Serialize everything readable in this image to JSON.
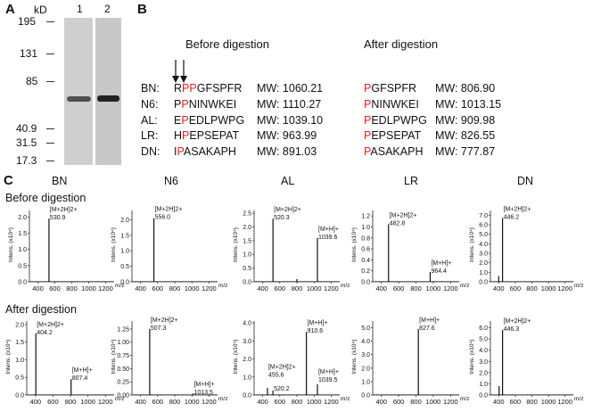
{
  "panelA": {
    "letter": "A",
    "kd_label": "kD",
    "markers": [
      "195",
      "131",
      "85",
      "40.9",
      "31.5",
      "17.3"
    ],
    "lanes": [
      "1",
      "2"
    ]
  },
  "panelB": {
    "letter": "B",
    "before_header": "Before digestion",
    "after_header": "After digestion",
    "rows": [
      {
        "name": "BN:",
        "before_pre": "R",
        "before_red": "PP",
        "before_post": "GFSPFR",
        "before_mw": "MW: 1060.21",
        "after_red": "P",
        "after_post": "GFSPFR",
        "after_mw": "MW: 806.90"
      },
      {
        "name": "N6:",
        "before_pre": "P",
        "before_red": "P",
        "before_post": "NINWKEI",
        "before_mw": "MW: 1110.27",
        "after_red": "P",
        "after_post": "NINWKEI",
        "after_mw": "MW: 1013.15"
      },
      {
        "name": "AL:",
        "before_pre": "E",
        "before_red": "P",
        "before_post": "EDLPWPG",
        "before_mw": "MW: 1039.10",
        "after_red": "P",
        "after_post": "EDLPWPG",
        "after_mw": "MW: 909.98"
      },
      {
        "name": "LR:",
        "before_pre": "H",
        "before_red": "P",
        "before_post": "EPSEPAT",
        "before_mw": "MW: 963.99",
        "after_red": "P",
        "after_post": "EPSEPAT",
        "after_mw": "MW: 826.55"
      },
      {
        "name": "DN:",
        "before_pre": "I",
        "before_red": "P",
        "before_post": "ASAKAPH",
        "before_mw": "MW: 891.03",
        "after_red": "P",
        "after_post": "ASAKAPH",
        "after_mw": "MW: 777.87"
      }
    ]
  },
  "panelC": {
    "letter": "C",
    "columns": [
      "BN",
      "N6",
      "AL",
      "LR",
      "DN"
    ],
    "row_before": "Before digestion",
    "row_after": "After digestion",
    "ylabel": "Intens. (x10⁴)",
    "xunit": "m/z"
  },
  "chart_data": [
    {
      "type": "line",
      "id": "BN-before",
      "ylabel": "Intens. (x10⁴)",
      "ylim": [
        0,
        2.2
      ],
      "yticks": [
        "0.0",
        "0.5",
        "1.0",
        "1.5",
        "2.0"
      ],
      "xticks": [
        "400",
        "600",
        "800",
        "1000",
        "1200"
      ],
      "xlim": [
        300,
        1300
      ],
      "peaks": [
        {
          "x": 530.9,
          "y": 1.95
        }
      ],
      "labels": [
        {
          "x": 530.9,
          "y": 1.95,
          "l1": "[M+2H]2+",
          "l2": "530.9"
        }
      ]
    },
    {
      "type": "line",
      "id": "N6-before",
      "ylabel": "Intens. (x10⁴)",
      "ylim": [
        0,
        2.3
      ],
      "yticks": [
        "0.0",
        "0.5",
        "1.0",
        "1.5",
        "2.0"
      ],
      "xticks": [
        "400",
        "600",
        "800",
        "1000",
        "1200"
      ],
      "xlim": [
        300,
        1300
      ],
      "peaks": [
        {
          "x": 556.0,
          "y": 2.05
        }
      ],
      "labels": [
        {
          "x": 556.0,
          "y": 2.05,
          "l1": "[M+2H]2+",
          "l2": "556.0"
        }
      ]
    },
    {
      "type": "line",
      "id": "AL-before",
      "ylabel": "Intens. (x10⁴)",
      "ylim": [
        0,
        2.6
      ],
      "yticks": [
        "0.0",
        "0.5",
        "1.0",
        "1.5",
        "2.0",
        "2.5"
      ],
      "xticks": [
        "400",
        "600",
        "800",
        "1000",
        "1200"
      ],
      "xlim": [
        300,
        1300
      ],
      "peaks": [
        {
          "x": 520.3,
          "y": 2.3
        },
        {
          "x": 800,
          "y": 0.1
        },
        {
          "x": 1039.6,
          "y": 1.6
        }
      ],
      "labels": [
        {
          "x": 520.3,
          "y": 2.3,
          "l1": "[M+2H]2+",
          "l2": "520.3"
        },
        {
          "x": 1039.6,
          "y": 1.6,
          "l1": "[M+H]+",
          "l2": "1039.6"
        }
      ]
    },
    {
      "type": "line",
      "id": "LR-before",
      "ylabel": "Intens. (x10⁴)",
      "ylim": [
        0,
        1.3
      ],
      "yticks": [
        "0.0",
        "0.2",
        "0.4",
        "0.6",
        "0.8",
        "1.0",
        "1.2"
      ],
      "xticks": [
        "400",
        "600",
        "800",
        "1000",
        "1200"
      ],
      "xlim": [
        300,
        1300
      ],
      "peaks": [
        {
          "x": 482.8,
          "y": 1.05
        },
        {
          "x": 964.4,
          "y": 0.18
        }
      ],
      "labels": [
        {
          "x": 482.8,
          "y": 1.05,
          "l1": "[M+2H]2+",
          "l2": "482.8"
        },
        {
          "x": 964.4,
          "y": 0.18,
          "l1": "[M+H]+",
          "l2": "964.4"
        }
      ]
    },
    {
      "type": "line",
      "id": "DN-before",
      "ylabel": "Intens. (x10⁴)",
      "ylim": [
        0,
        7.5
      ],
      "yticks": [
        "0.0",
        "1.0",
        "2.0",
        "3.0",
        "4.0",
        "5.0",
        "6.0",
        "7.0"
      ],
      "xticks": [
        "400",
        "600",
        "800",
        "1000",
        "1200"
      ],
      "xlim": [
        300,
        1300
      ],
      "peaks": [
        {
          "x": 446.2,
          "y": 6.7
        },
        {
          "x": 400,
          "y": 0.6
        }
      ],
      "labels": [
        {
          "x": 446.2,
          "y": 6.7,
          "l1": "[M+2H]2+",
          "l2": "446.2"
        }
      ]
    },
    {
      "type": "line",
      "id": "BN-after",
      "ylabel": "Intens. (x10⁴)",
      "ylim": [
        0,
        2.1
      ],
      "yticks": [
        "0.0",
        "0.5",
        "1.0",
        "1.5",
        "2.0"
      ],
      "xticks": [
        "400",
        "600",
        "800",
        "1000",
        "1200"
      ],
      "xlim": [
        300,
        1300
      ],
      "peaks": [
        {
          "x": 404.2,
          "y": 1.75
        },
        {
          "x": 807.4,
          "y": 0.45
        }
      ],
      "labels": [
        {
          "x": 404.2,
          "y": 1.75,
          "l1": "[M+2H]2+",
          "l2": "404.2"
        },
        {
          "x": 807.4,
          "y": 0.45,
          "l1": "[M+H]+",
          "l2": "807.4"
        }
      ]
    },
    {
      "type": "line",
      "id": "N6-after",
      "ylabel": "Intens. (x10⁴)",
      "ylim": [
        0,
        1.4
      ],
      "yticks": [
        "0.00",
        "0.25",
        "0.50",
        "0.75",
        "1.00",
        "1.25"
      ],
      "xticks": [
        "400",
        "600",
        "800",
        "1000",
        "1200"
      ],
      "xlim": [
        300,
        1300
      ],
      "peaks": [
        {
          "x": 507.3,
          "y": 1.25
        },
        {
          "x": 1013.5,
          "y": 0.03
        }
      ],
      "labels": [
        {
          "x": 507.3,
          "y": 1.25,
          "l1": "[M+2H]2+",
          "l2": "507.3"
        },
        {
          "x": 1013.5,
          "y": 0.03,
          "l1": "[M+H]+",
          "l2": "1013.5"
        }
      ]
    },
    {
      "type": "line",
      "id": "AL-after",
      "ylabel": "Intens. (x10⁴)",
      "ylim": [
        0,
        4.1
      ],
      "yticks": [
        "0.0",
        "1.0",
        "2.0",
        "3.0",
        "4.0"
      ],
      "xticks": [
        "400",
        "600",
        "800",
        "1000",
        "1200"
      ],
      "xlim": [
        300,
        1300
      ],
      "peaks": [
        {
          "x": 455.6,
          "y": 0.4
        },
        {
          "x": 520.2,
          "y": 0.25
        },
        {
          "x": 910.6,
          "y": 3.5
        },
        {
          "x": 1039.5,
          "y": 0.6
        }
      ],
      "labels": [
        {
          "x": 455.6,
          "y": 1.05,
          "l1": "[M+2H]2+",
          "l2": "455.6"
        },
        {
          "x": 520.2,
          "y": 0.3,
          "l1": "",
          "l2": "520.2"
        },
        {
          "x": 910.6,
          "y": 3.5,
          "l1": "[M+H]+",
          "l2": "910.6"
        },
        {
          "x": 1039.5,
          "y": 0.8,
          "l1": "[M+H]+",
          "l2": "1039.5"
        }
      ]
    },
    {
      "type": "line",
      "id": "LR-after",
      "ylabel": "Intens. (x10⁴)",
      "ylim": [
        0,
        5.5
      ],
      "yticks": [
        "0.0",
        "1.0",
        "2.0",
        "3.0",
        "4.0",
        "5.0"
      ],
      "xticks": [
        "400",
        "600",
        "800",
        "1000",
        "1200"
      ],
      "xlim": [
        300,
        1300
      ],
      "peaks": [
        {
          "x": 827.6,
          "y": 4.9
        }
      ],
      "labels": [
        {
          "x": 827.6,
          "y": 4.9,
          "l1": "[M+H]+",
          "l2": "827.6"
        }
      ]
    },
    {
      "type": "line",
      "id": "DN-after",
      "ylabel": "Intens. (x10⁴)",
      "ylim": [
        0,
        6.6
      ],
      "yticks": [
        "0.0",
        "1.0",
        "2.0",
        "3.0",
        "4.0",
        "5.0",
        "6.0"
      ],
      "xticks": [
        "400",
        "600",
        "800",
        "1000",
        "1200"
      ],
      "xlim": [
        300,
        1300
      ],
      "peaks": [
        {
          "x": 446.3,
          "y": 5.8
        },
        {
          "x": 405,
          "y": 0.8
        }
      ],
      "labels": [
        {
          "x": 446.3,
          "y": 5.8,
          "l1": "[M+2H]2+",
          "l2": "446.3"
        }
      ]
    }
  ]
}
